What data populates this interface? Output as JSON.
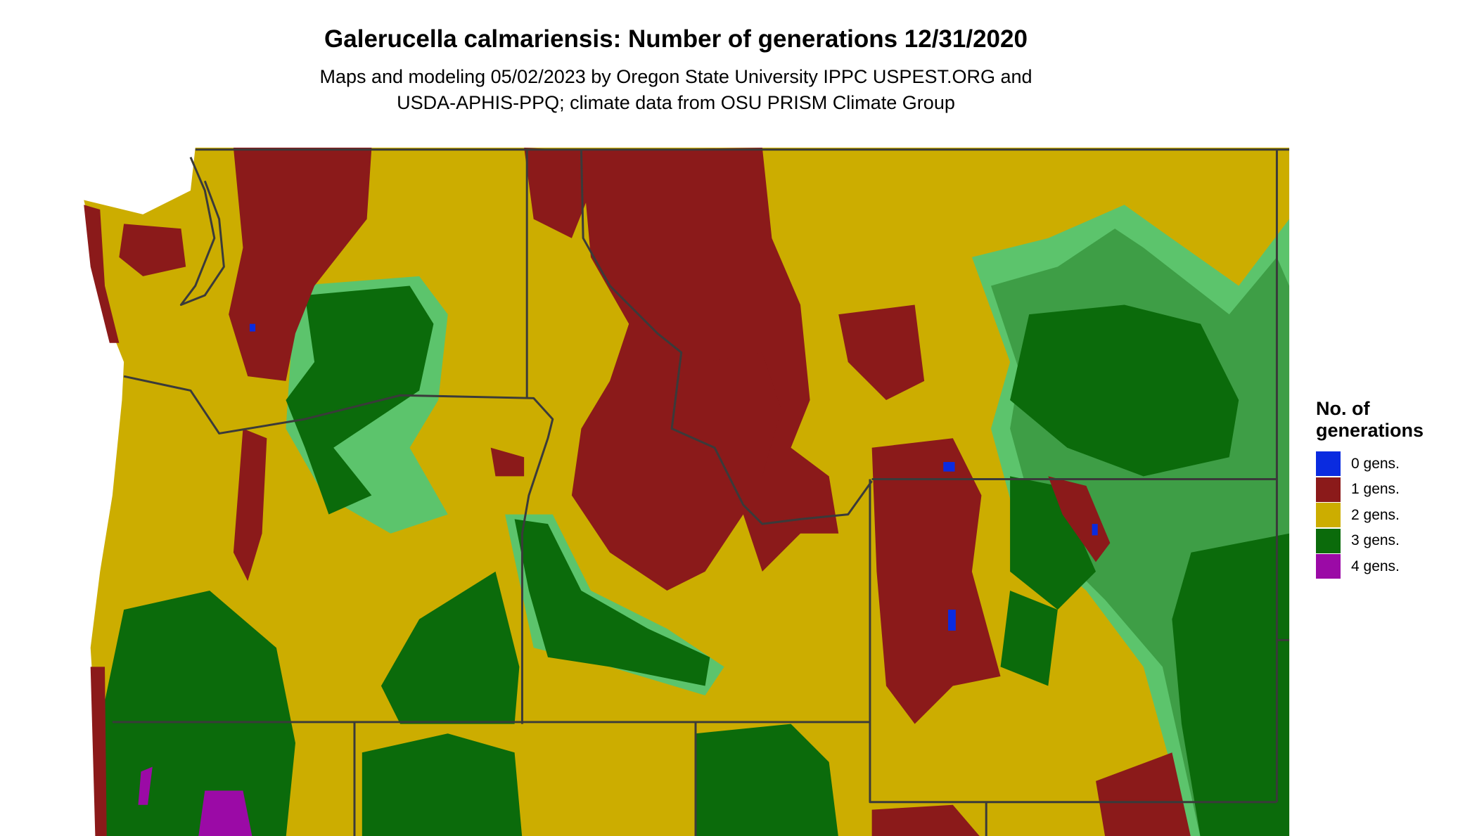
{
  "header": {
    "title": "Galerucella calmariensis: Number of generations 12/31/2020",
    "subtitle_lines": [
      "Maps and modeling 05/02/2023 by Oregon State University IPPC USPEST.ORG and",
      "USDA-APHIS-PPQ; climate data from OSU PRISM Climate Group"
    ]
  },
  "legend": {
    "title": "No. of generations",
    "entries": [
      {
        "label": "0 gens.",
        "color": "#0a2be0"
      },
      {
        "label": "1 gens.",
        "color": "#8b1a1a"
      },
      {
        "label": "2 gens.",
        "color": "#ccad00"
      },
      {
        "label": "3 gens.",
        "color": "#0b6b0b"
      },
      {
        "label": "4 gens.",
        "color": "#9b0aa6"
      }
    ]
  }
}
